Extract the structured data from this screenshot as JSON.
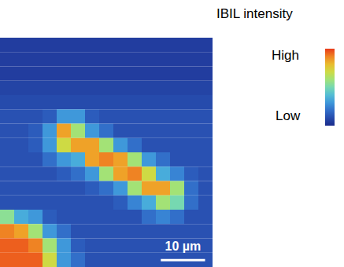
{
  "chart_data": {
    "type": "heatmap",
    "tick_labels": false,
    "xlim": [
      0,
      48
    ],
    "ylim": [
      0,
      52
    ],
    "xbins": [
      0,
      3.2,
      6.4,
      9.6,
      12.8,
      16,
      19.2,
      22.4,
      25.6,
      28.8,
      32,
      35.2,
      38.4,
      41.6,
      44.8,
      48
    ],
    "ybins": [
      0,
      3.25,
      6.5,
      9.75,
      13,
      16.25,
      19.5,
      22.75,
      26,
      29.25,
      32.5,
      35.75,
      39,
      42.25,
      45.5,
      48.75,
      52
    ],
    "cells": [
      [
        0.06,
        0.06,
        0.06,
        0.06,
        0.06,
        0.06,
        0.06,
        0.06,
        0.06,
        0.06,
        0.06,
        0.06,
        0.06,
        0.06,
        0.06
      ],
      [
        0.06,
        0.06,
        0.06,
        0.06,
        0.06,
        0.06,
        0.06,
        0.06,
        0.06,
        0.06,
        0.06,
        0.06,
        0.06,
        0.06,
        0.06
      ],
      [
        0.06,
        0.06,
        0.06,
        0.06,
        0.06,
        0.06,
        0.06,
        0.06,
        0.06,
        0.06,
        0.06,
        0.06,
        0.06,
        0.06,
        0.06
      ],
      [
        0.08,
        0.08,
        0.08,
        0.08,
        0.08,
        0.08,
        0.08,
        0.08,
        0.08,
        0.08,
        0.08,
        0.08,
        0.08,
        0.08,
        0.08
      ],
      [
        0.1,
        0.1,
        0.1,
        0.1,
        0.1,
        0.1,
        0.1,
        0.1,
        0.1,
        0.1,
        0.1,
        0.1,
        0.1,
        0.1,
        0.1
      ],
      [
        0.12,
        0.12,
        0.12,
        0.15,
        0.3,
        0.3,
        0.15,
        0.12,
        0.12,
        0.12,
        0.12,
        0.12,
        0.12,
        0.12,
        0.12
      ],
      [
        0.12,
        0.12,
        0.15,
        0.3,
        0.85,
        0.6,
        0.3,
        0.2,
        0.12,
        0.12,
        0.12,
        0.12,
        0.12,
        0.12,
        0.12
      ],
      [
        0.12,
        0.12,
        0.15,
        0.3,
        0.7,
        0.85,
        0.85,
        0.6,
        0.3,
        0.2,
        0.12,
        0.12,
        0.12,
        0.12,
        0.12
      ],
      [
        0.12,
        0.12,
        0.12,
        0.2,
        0.3,
        0.35,
        0.85,
        0.9,
        0.85,
        0.6,
        0.3,
        0.2,
        0.12,
        0.12,
        0.12
      ],
      [
        0.12,
        0.12,
        0.12,
        0.12,
        0.15,
        0.2,
        0.3,
        0.6,
        0.85,
        0.9,
        0.7,
        0.35,
        0.25,
        0.15,
        0.12
      ],
      [
        0.12,
        0.12,
        0.12,
        0.12,
        0.12,
        0.12,
        0.15,
        0.2,
        0.3,
        0.6,
        0.85,
        0.85,
        0.6,
        0.2,
        0.12
      ],
      [
        0.12,
        0.12,
        0.12,
        0.12,
        0.12,
        0.12,
        0.12,
        0.12,
        0.15,
        0.25,
        0.35,
        0.6,
        0.5,
        0.2,
        0.12
      ],
      [
        0.55,
        0.35,
        0.3,
        0.15,
        0.12,
        0.12,
        0.12,
        0.12,
        0.12,
        0.12,
        0.2,
        0.25,
        0.2,
        0.12,
        0.12
      ],
      [
        0.9,
        0.85,
        0.6,
        0.3,
        0.2,
        0.12,
        0.12,
        0.12,
        0.12,
        0.12,
        0.12,
        0.12,
        0.12,
        0.12,
        0.12
      ],
      [
        0.95,
        0.95,
        0.9,
        0.6,
        0.3,
        0.15,
        0.12,
        0.12,
        0.12,
        0.12,
        0.12,
        0.12,
        0.12,
        0.12,
        0.12
      ],
      [
        0.95,
        0.95,
        0.95,
        0.7,
        0.3,
        0.2,
        0.12,
        0.12,
        0.12,
        0.12,
        0.12,
        0.12,
        0.12,
        0.12,
        0.12
      ]
    ],
    "colorbar": {
      "label": "IBIL intensity",
      "range": [
        0,
        1
      ],
      "high_label": "High",
      "low_label": "Low"
    },
    "scale_bar": {
      "length": 10,
      "label": "10 µm"
    }
  }
}
